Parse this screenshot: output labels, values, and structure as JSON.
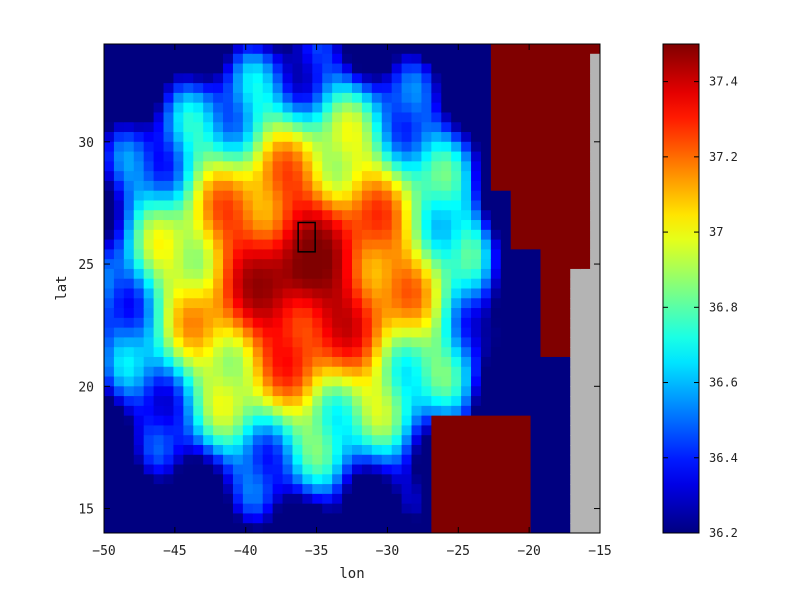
{
  "chart_data": {
    "type": "heatmap",
    "title": "",
    "xlabel": "lon",
    "ylabel": "lat",
    "xlim": [
      -50,
      -15
    ],
    "ylim": [
      14,
      34
    ],
    "x_ticks": [
      -50,
      -45,
      -40,
      -35,
      -30,
      -25,
      -20,
      -15
    ],
    "y_ticks": [
      15,
      20,
      25,
      30
    ],
    "colorbar": {
      "vmin": 36.2,
      "vmax": 37.5,
      "ticks": [
        36.2,
        36.4,
        36.6,
        36.8,
        37,
        37.2,
        37.4
      ],
      "colormap": "jet"
    },
    "field": {
      "max_center": [
        -36,
        24.5
      ],
      "max_value": 37.5,
      "eastern_edge_min": 36.2
    },
    "land_color": "#800000",
    "continent_color": "#b4b4b4",
    "highlight_box": {
      "lon": [
        -36.3,
        -35.1
      ],
      "lat": [
        25.5,
        26.7
      ]
    },
    "grid": false,
    "legend": "none"
  }
}
